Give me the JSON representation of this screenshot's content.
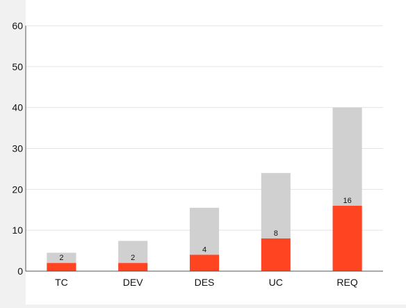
{
  "chart_data": {
    "type": "bar",
    "stacked": true,
    "categories": [
      "TC",
      "DEV",
      "DES",
      "UC",
      "REQ"
    ],
    "series": [
      {
        "values": [
          2,
          2,
          4,
          8,
          16
        ],
        "color": "#ff4422",
        "data_labels": [
          "2",
          "2",
          "4",
          "8",
          "16"
        ]
      },
      {
        "values": [
          2.5,
          5.4,
          11.5,
          16,
          24
        ],
        "color": "#d0d0d0"
      }
    ],
    "ylim": [
      0,
      60
    ],
    "yticks": [
      "0",
      "10",
      "20",
      "30",
      "40",
      "50",
      "60"
    ],
    "grid": true
  }
}
